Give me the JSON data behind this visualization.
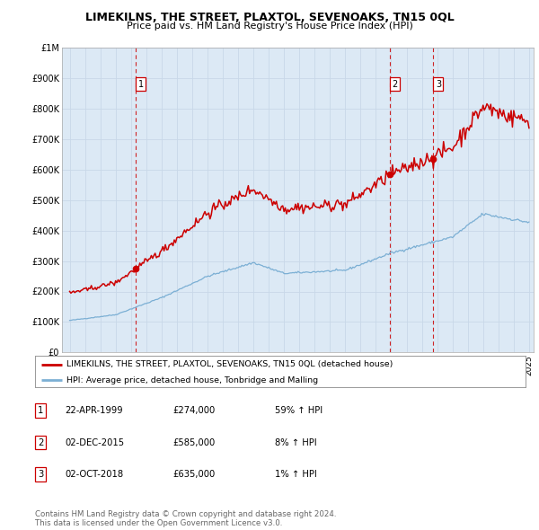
{
  "title": "LIMEKILNS, THE STREET, PLAXTOL, SEVENOAKS, TN15 0QL",
  "subtitle": "Price paid vs. HM Land Registry's House Price Index (HPI)",
  "background_color": "#ffffff",
  "plot_bg_color": "#dce9f5",
  "grid_color": "#ffffff",
  "red_line_color": "#cc0000",
  "blue_line_color": "#7bafd4",
  "dashed_line_color": "#cc0000",
  "ylim": [
    0,
    1000000
  ],
  "yticks": [
    0,
    100000,
    200000,
    300000,
    400000,
    500000,
    600000,
    700000,
    800000,
    900000,
    1000000
  ],
  "ytick_labels": [
    "£0",
    "£100K",
    "£200K",
    "£300K",
    "£400K",
    "£500K",
    "£600K",
    "£700K",
    "£800K",
    "£900K",
    "£1M"
  ],
  "xlim_start": 1995,
  "xlim_end": 2025,
  "sales": [
    {
      "date_num": 1999.31,
      "price": 274000,
      "label": "1"
    },
    {
      "date_num": 2015.92,
      "price": 585000,
      "label": "2"
    },
    {
      "date_num": 2018.75,
      "price": 635000,
      "label": "3"
    }
  ],
  "legend_red": "LIMEKILNS, THE STREET, PLAXTOL, SEVENOAKS, TN15 0QL (detached house)",
  "legend_blue": "HPI: Average price, detached house, Tonbridge and Malling",
  "table_rows": [
    {
      "num": "1",
      "date": "22-APR-1999",
      "price": "£274,000",
      "hpi": "59% ↑ HPI"
    },
    {
      "num": "2",
      "date": "02-DEC-2015",
      "price": "£585,000",
      "hpi": "8% ↑ HPI"
    },
    {
      "num": "3",
      "date": "02-OCT-2018",
      "price": "£635,000",
      "hpi": "1% ↑ HPI"
    }
  ],
  "footer": "Contains HM Land Registry data © Crown copyright and database right 2024.\nThis data is licensed under the Open Government Licence v3.0."
}
